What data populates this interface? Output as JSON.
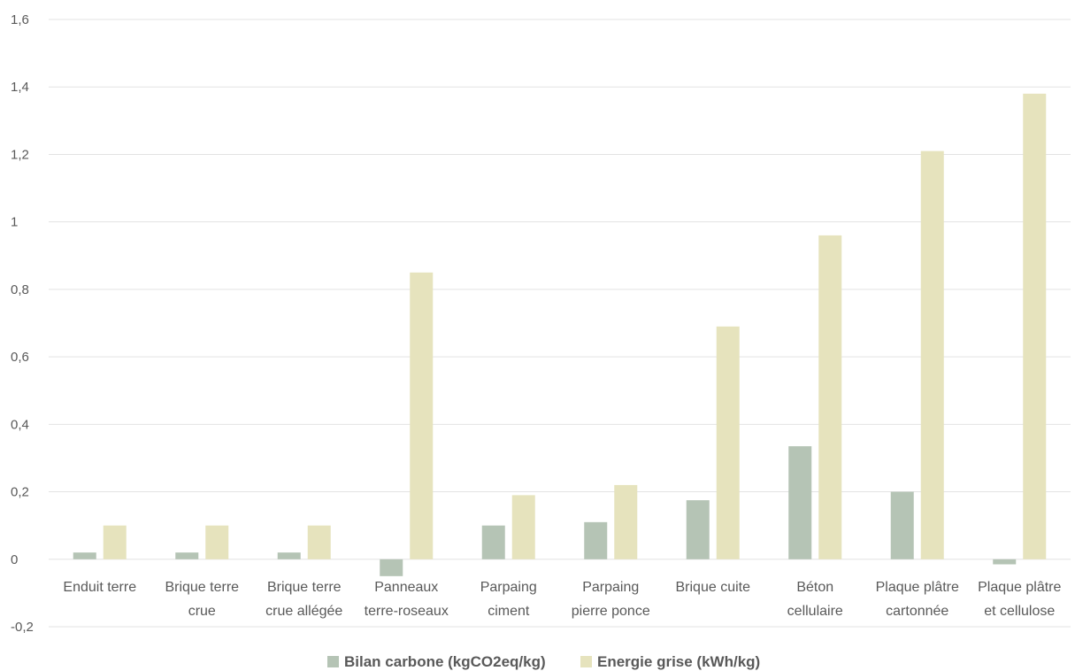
{
  "chart_data": {
    "type": "bar",
    "title": "",
    "xlabel": "",
    "ylabel": "",
    "categories": [
      [
        "Enduit terre"
      ],
      [
        "Brique terre",
        "crue"
      ],
      [
        "Brique terre",
        "crue allégée"
      ],
      [
        "Panneaux",
        "terre-roseaux"
      ],
      [
        "Parpaing",
        "ciment"
      ],
      [
        "Parpaing",
        "pierre ponce"
      ],
      [
        "Brique cuite"
      ],
      [
        "Béton",
        "cellulaire"
      ],
      [
        "Plaque plâtre",
        "cartonnée"
      ],
      [
        "Plaque plâtre",
        "et cellulose"
      ]
    ],
    "series": [
      {
        "name": "Bilan carbone (kgCO2eq/kg)",
        "color": "#b5c4b5",
        "values": [
          0.02,
          0.02,
          0.02,
          -0.05,
          0.1,
          0.11,
          0.175,
          0.335,
          0.2,
          -0.015
        ]
      },
      {
        "name": "Energie grise (kWh/kg)",
        "color": "#e6e3bd",
        "values": [
          0.1,
          0.1,
          0.1,
          0.85,
          0.19,
          0.22,
          0.69,
          0.96,
          1.21,
          1.38
        ]
      }
    ],
    "ylim": [
      -0.2,
      1.6
    ],
    "yticks": [
      -0.2,
      0,
      0.2,
      0.4,
      0.6,
      0.8,
      1,
      1.2,
      1.4,
      1.6
    ],
    "ytick_labels": [
      "-0,2",
      "0",
      "0,2",
      "0,4",
      "0,6",
      "0,8",
      "1",
      "1,2",
      "1,4",
      "1,6"
    ],
    "grid": true,
    "legend_position": "bottom"
  }
}
